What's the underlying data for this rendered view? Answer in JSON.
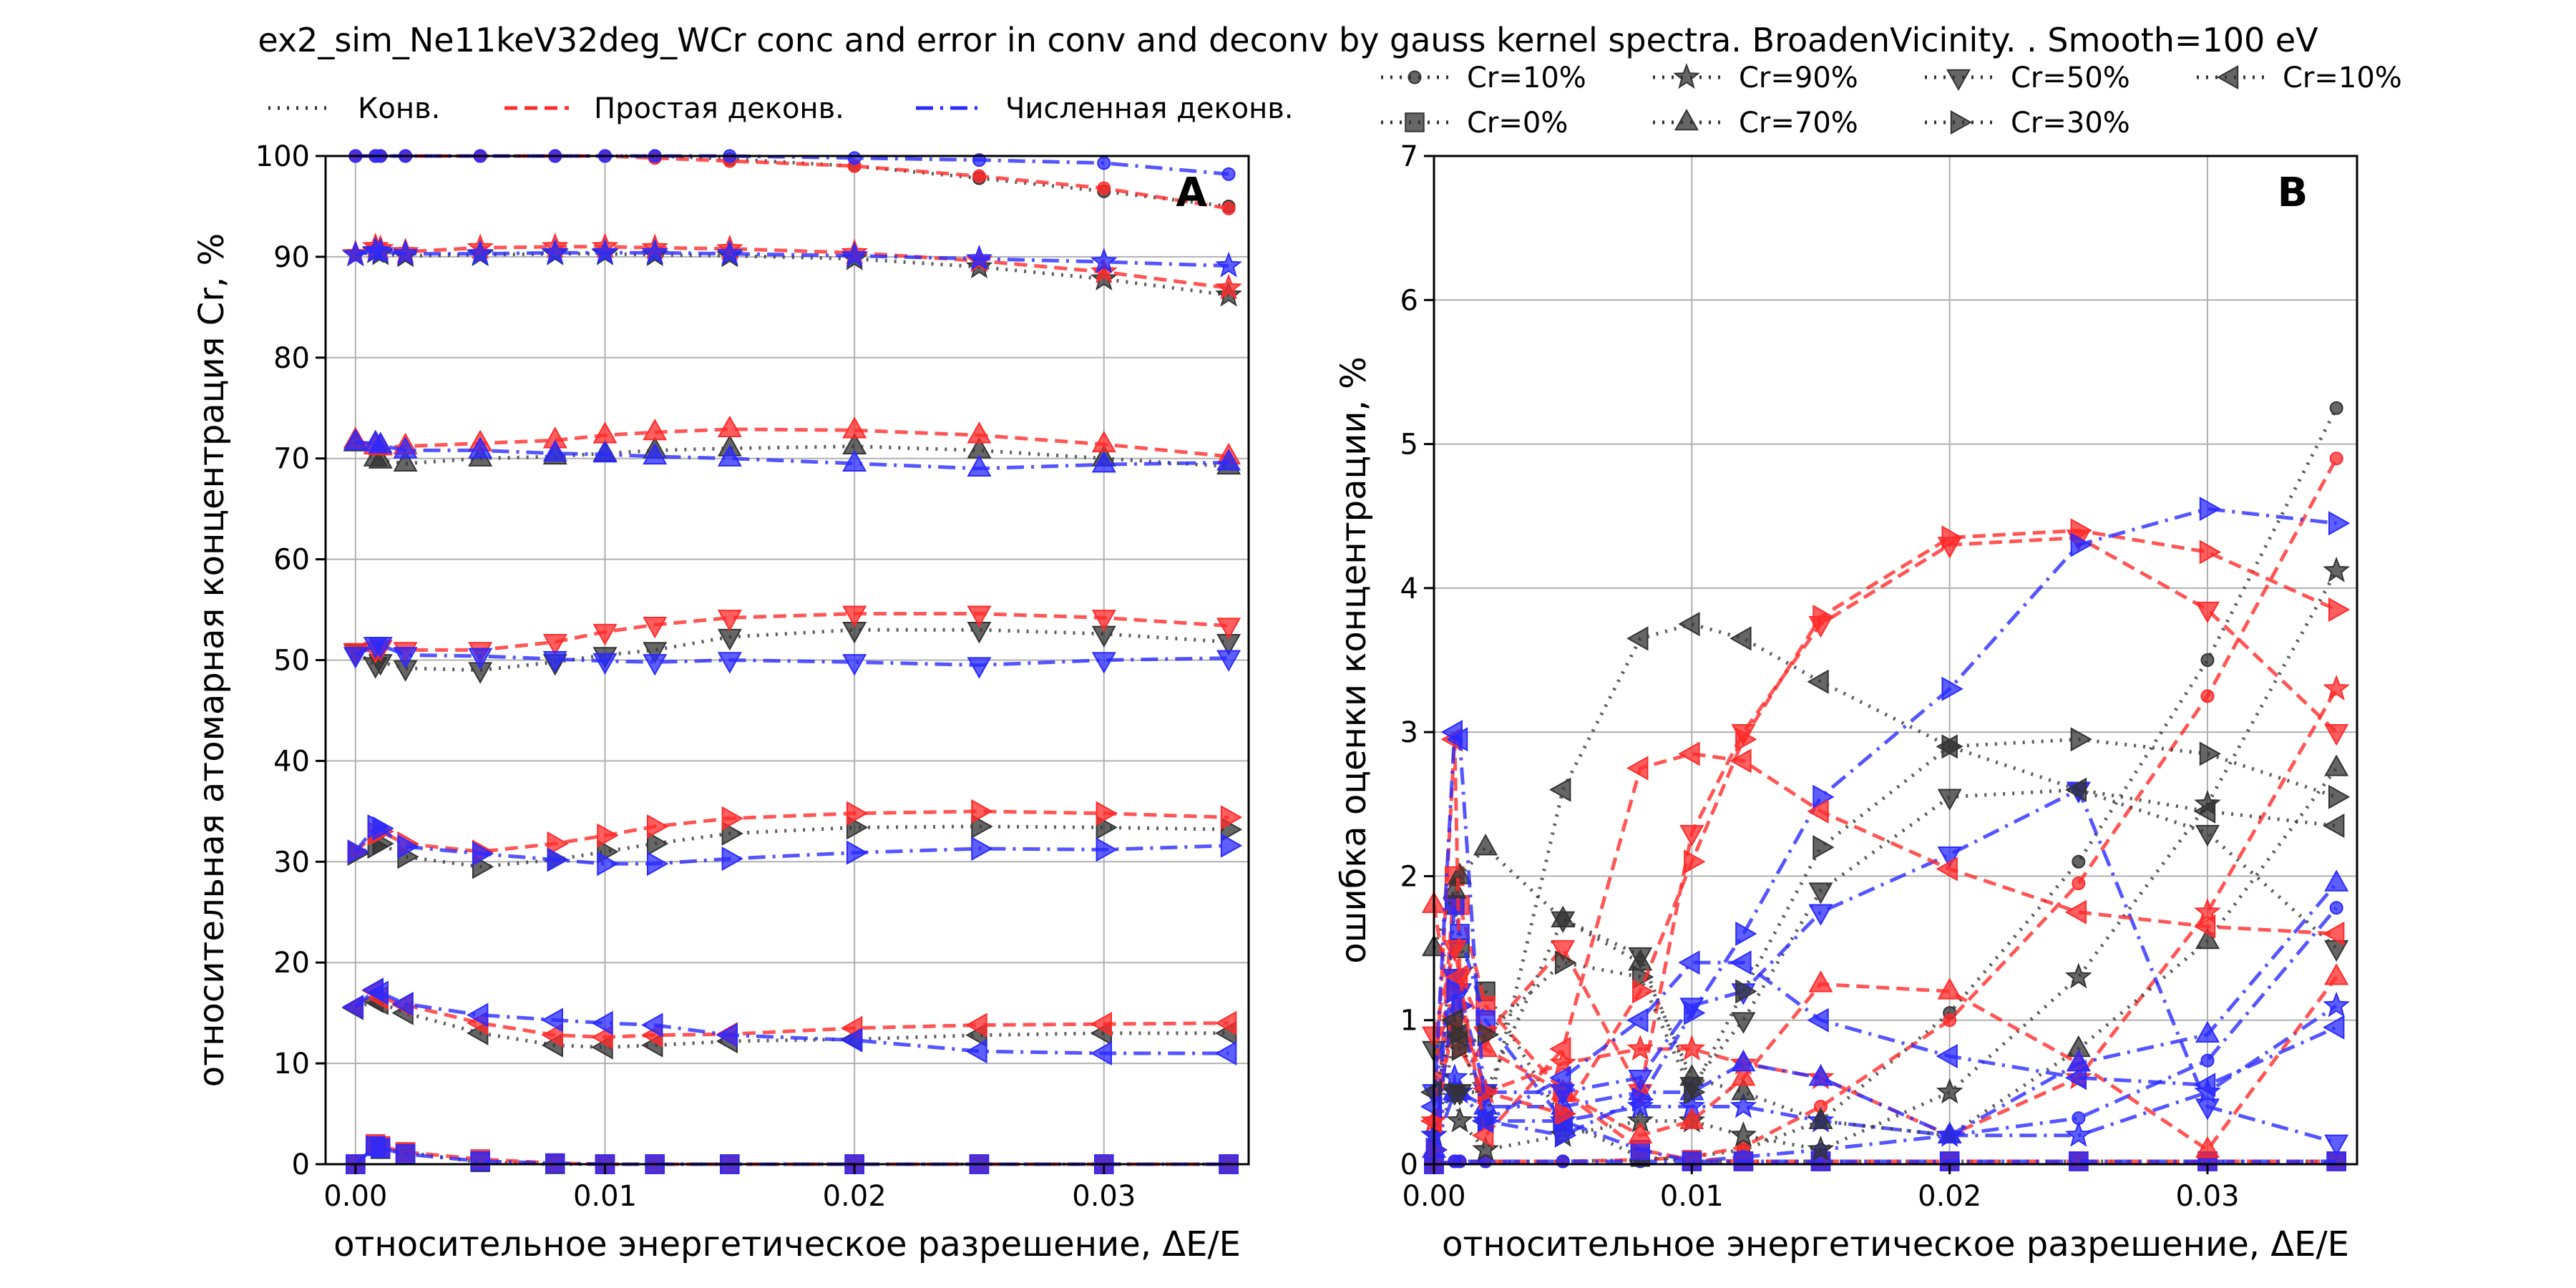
{
  "figure": {
    "title": "ex2_sim_Ne11keV32deg_WCr conc and error in conv and deconv by gauss kernel spectra. BroadenVicinity. . Smooth=100 eV"
  },
  "chart_data": [
    {
      "type": "line",
      "panel_label": "A",
      "xlabel": "относительное энергетическое разрешение, ΔE/E",
      "ylabel": "относительная атомарная концентрация Cr, %",
      "xlim": [
        -0.0012,
        0.0358
      ],
      "ylim": [
        0,
        100
      ],
      "xticks": [
        0.0,
        0.01,
        0.02,
        0.03
      ],
      "xtick_labels": [
        "0.00",
        "0.01",
        "0.02",
        "0.03"
      ],
      "yticks": [
        0,
        10,
        20,
        30,
        40,
        50,
        60,
        70,
        80,
        90,
        100
      ],
      "ytick_labels": [
        "0",
        "10",
        "20",
        "30",
        "40",
        "50",
        "60",
        "70",
        "80",
        "90",
        "100"
      ],
      "grid": true,
      "legend": {
        "placement": "above-axes",
        "entries": [
          {
            "label": "Конв.",
            "color": "#333333",
            "style": "dotted"
          },
          {
            "label": "Простая деконв.",
            "color": "#ff2a2a",
            "style": "dashed"
          },
          {
            "label": "Численная деконв.",
            "color": "#2a2aff",
            "style": "dashdot"
          }
        ]
      },
      "x": [
        0.0,
        0.0008,
        0.001,
        0.002,
        0.005,
        0.008,
        0.01,
        0.012,
        0.015,
        0.02,
        0.025,
        0.03,
        0.035
      ],
      "groups": [
        {
          "marker": "circle",
          "conv": [
            100,
            100,
            100,
            100,
            100,
            100,
            100,
            100,
            99.7,
            99,
            97.8,
            96.5,
            95
          ],
          "simple": [
            100,
            100,
            100,
            100,
            100,
            100,
            100,
            99.8,
            99.5,
            99,
            98,
            96.8,
            94.8
          ],
          "numeric": [
            100,
            100,
            100,
            100,
            100,
            100,
            100,
            100,
            100,
            99.8,
            99.6,
            99.3,
            98.2
          ]
        },
        {
          "marker": "star",
          "conv": [
            90.2,
            90.5,
            90.3,
            90.1,
            90.2,
            90.3,
            90.3,
            90.2,
            90.1,
            89.8,
            89,
            87.8,
            86.2
          ],
          "simple": [
            90.3,
            91,
            90.8,
            90.5,
            90.9,
            91,
            91,
            90.9,
            90.8,
            90.4,
            89.6,
            88.5,
            86.9
          ],
          "numeric": [
            90.2,
            90.6,
            90.5,
            90.3,
            90.3,
            90.4,
            90.4,
            90.4,
            90.3,
            90.1,
            89.8,
            89.5,
            89.1
          ]
        },
        {
          "marker": "triangle-up",
          "conv": [
            71.5,
            70,
            69.8,
            69.5,
            70,
            70.2,
            70.5,
            70.8,
            71,
            71.2,
            70.8,
            70,
            69.2
          ],
          "simple": [
            71.8,
            71.2,
            71.1,
            71.2,
            71.5,
            71.8,
            72.3,
            72.6,
            72.9,
            72.8,
            72.3,
            71.4,
            70.2
          ],
          "numeric": [
            71.6,
            71.5,
            71.3,
            70.8,
            70.8,
            70.5,
            70.4,
            70.2,
            70,
            69.5,
            69,
            69.4,
            69.6
          ]
        },
        {
          "marker": "triangle-down",
          "conv": [
            50.8,
            49.5,
            49.8,
            49.2,
            49,
            49.8,
            50.5,
            51,
            52.3,
            53,
            53,
            52.6,
            51.8
          ],
          "simple": [
            50.9,
            51,
            51.2,
            51,
            51,
            51.8,
            52.8,
            53.5,
            54.2,
            54.6,
            54.6,
            54.2,
            53.4
          ],
          "numeric": [
            50.5,
            51.5,
            51.5,
            50.5,
            50.4,
            50.1,
            49.9,
            49.8,
            50,
            49.8,
            49.5,
            50,
            50.2
          ]
        },
        {
          "marker": "triangle-right",
          "conv": [
            30.8,
            31.5,
            31.8,
            30.5,
            29.5,
            30.2,
            31,
            31.8,
            32.8,
            33.4,
            33.5,
            33.4,
            33.2
          ],
          "simple": [
            31,
            32.8,
            33,
            31.8,
            31,
            31.8,
            32.6,
            33.5,
            34.3,
            34.8,
            35,
            34.8,
            34.4
          ],
          "numeric": [
            31,
            33.5,
            33.3,
            31.5,
            30.8,
            30.2,
            29.8,
            29.8,
            30.3,
            30.9,
            31.3,
            31.2,
            31.6
          ]
        },
        {
          "marker": "triangle-left",
          "conv": [
            15.5,
            16.2,
            16,
            15,
            13,
            11.8,
            11.6,
            11.8,
            12.2,
            12.4,
            12.8,
            13,
            13
          ],
          "simple": [
            15.6,
            17.2,
            16.5,
            15.8,
            14,
            12.8,
            12.6,
            12.8,
            12.9,
            13.5,
            13.8,
            13.9,
            14
          ],
          "numeric": [
            15.6,
            17.3,
            17,
            15.9,
            14.8,
            14.3,
            14,
            13.8,
            12.8,
            12.3,
            11.2,
            11,
            11
          ]
        },
        {
          "marker": "square",
          "conv": [
            0,
            1.8,
            1.5,
            1.2,
            0.2,
            0,
            0,
            0,
            0,
            0,
            0,
            0,
            0
          ],
          "simple": [
            0,
            2,
            1.8,
            1.2,
            0.5,
            0.1,
            0,
            0,
            0,
            0,
            0,
            0,
            0
          ],
          "numeric": [
            0,
            1.8,
            1.6,
            1,
            0.3,
            0.1,
            0,
            0,
            0,
            0,
            0,
            0,
            0
          ]
        }
      ]
    },
    {
      "type": "line",
      "panel_label": "B",
      "xlabel": "относительное энергетическое разрешение, ΔE/E",
      "ylabel": "ошибка оценки концентрации, %",
      "xlim": [
        0,
        0.0358
      ],
      "ylim": [
        0,
        7
      ],
      "xticks": [
        0.0,
        0.01,
        0.02,
        0.03
      ],
      "xtick_labels": [
        "0.00",
        "0.01",
        "0.02",
        "0.03"
      ],
      "yticks": [
        0,
        1,
        2,
        3,
        4,
        5,
        6,
        7
      ],
      "ytick_labels": [
        "0",
        "1",
        "2",
        "3",
        "4",
        "5",
        "6",
        "7"
      ],
      "grid": true,
      "legend": {
        "placement": "above-axes",
        "entries": [
          {
            "label": "Cr=10%",
            "marker": "circle"
          },
          {
            "label": "Cr=0%",
            "marker": "square"
          },
          {
            "label": "Cr=90%",
            "marker": "star"
          },
          {
            "label": "Cr=70%",
            "marker": "triangle-up"
          },
          {
            "label": "Cr=50%",
            "marker": "triangle-down"
          },
          {
            "label": "Cr=30%",
            "marker": "triangle-right"
          },
          {
            "label": "Cr=10%",
            "marker": "triangle-left"
          }
        ]
      },
      "x": [
        0.0,
        0.0008,
        0.001,
        0.002,
        0.005,
        0.008,
        0.01,
        0.012,
        0.015,
        0.02,
        0.025,
        0.03,
        0.035
      ],
      "groups": [
        {
          "marker": "circle",
          "conv": [
            0,
            0.02,
            0.02,
            0.02,
            0.02,
            0.03,
            0.05,
            0.1,
            0.3,
            1.05,
            2.1,
            3.5,
            5.25
          ],
          "simple": [
            0,
            0.02,
            0.02,
            0.02,
            0.02,
            0.03,
            0.05,
            0.12,
            0.4,
            1,
            1.95,
            3.25,
            4.9
          ],
          "numeric": [
            0,
            0.02,
            0.02,
            0.02,
            0.02,
            0.02,
            0.02,
            0.05,
            0.1,
            0.2,
            0.32,
            0.72,
            1.78
          ]
        },
        {
          "marker": "square",
          "conv": [
            0,
            1.8,
            1.5,
            1.2,
            0.3,
            0.05,
            0.02,
            0.02,
            0.02,
            0.02,
            0.02,
            0.02,
            0.02
          ],
          "simple": [
            0,
            2,
            1.8,
            1.1,
            0.5,
            0.1,
            0.03,
            0.02,
            0.02,
            0.02,
            0.02,
            0.02,
            0.02
          ],
          "numeric": [
            0,
            1.8,
            1.6,
            1,
            0.3,
            0.1,
            0.02,
            0.02,
            0.02,
            0.02,
            0.02,
            0.02,
            0.02
          ]
        },
        {
          "marker": "star",
          "conv": [
            0.2,
            0.5,
            0.3,
            0.1,
            0.2,
            0.3,
            0.3,
            0.2,
            0.1,
            0.5,
            1.3,
            2.5,
            4.12
          ],
          "simple": [
            0.3,
            1,
            0.8,
            0.5,
            0.7,
            0.8,
            0.8,
            0.7,
            0.6,
            0.2,
            0.6,
            1.75,
            3.3
          ],
          "numeric": [
            0.2,
            0.6,
            0.5,
            0.3,
            0.3,
            0.4,
            0.4,
            0.4,
            0.3,
            0.2,
            0.2,
            0.5,
            1.1
          ]
        },
        {
          "marker": "triangle-up",
          "conv": [
            1.5,
            1.9,
            2,
            2.2,
            1.7,
            1.4,
            0.6,
            0.5,
            0.3,
            0.2,
            0.8,
            1.55,
            2.75
          ],
          "simple": [
            1.8,
            0.9,
            0.9,
            0.8,
            0.5,
            0.2,
            0.3,
            0.6,
            1.25,
            1.2,
            0.7,
            0.1,
            1.3
          ],
          "numeric": [
            0.1,
            0.5,
            0.5,
            0.4,
            0.4,
            0.5,
            0.5,
            0.7,
            0.6,
            0.2,
            0.7,
            0.9,
            1.95
          ]
        },
        {
          "marker": "triangle-down",
          "conv": [
            0.8,
            0.5,
            0.5,
            0.5,
            1.7,
            1.45,
            0.55,
            1,
            1.9,
            2.55,
            2.6,
            2.3,
            1.5
          ],
          "simple": [
            0.9,
            1.5,
            1.3,
            0.9,
            1.5,
            0.5,
            2.3,
            3,
            3.75,
            4.3,
            4.35,
            3.85,
            3
          ],
          "numeric": [
            0.5,
            1.3,
            1.2,
            0.5,
            0.5,
            0.6,
            1.1,
            1.2,
            1.75,
            2.15,
            2.6,
            0.4,
            0.15
          ]
        },
        {
          "marker": "triangle-right",
          "conv": [
            0.1,
            0.9,
            0.8,
            0.9,
            1.4,
            1.3,
            0.5,
            1.2,
            2.2,
            2.9,
            2.95,
            2.85,
            2.55
          ],
          "simple": [
            0.1,
            1.2,
            1.1,
            0.5,
            0.35,
            1.2,
            2.1,
            2.95,
            3.8,
            4.35,
            4.4,
            4.25,
            3.85
          ],
          "numeric": [
            0.1,
            1.2,
            1.1,
            0.3,
            0.2,
            0.45,
            1.05,
            1.6,
            2.55,
            3.3,
            4.3,
            4.55,
            4.45
          ]
        },
        {
          "marker": "triangle-left",
          "conv": [
            0.5,
            1,
            0.9,
            0.3,
            2.6,
            3.65,
            3.75,
            3.65,
            3.35,
            2.9,
            2.6,
            2.45,
            2.35
          ],
          "simple": [
            0.3,
            2.95,
            1.3,
            0.2,
            0.8,
            2.75,
            2.85,
            2.8,
            2.45,
            2.05,
            1.75,
            1.65,
            1.6
          ],
          "numeric": [
            0.4,
            3,
            2.95,
            0.3,
            0.6,
            1,
            1.4,
            1.4,
            1,
            0.75,
            0.6,
            0.55,
            0.95
          ]
        }
      ]
    }
  ]
}
